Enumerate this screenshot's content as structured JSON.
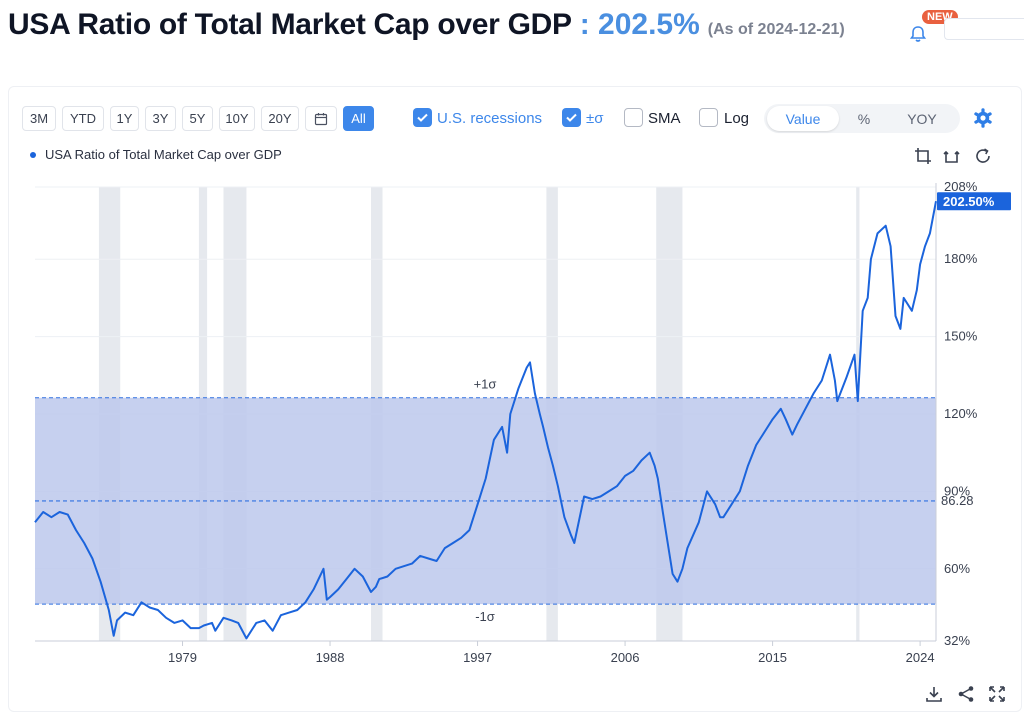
{
  "header": {
    "title": "USA Ratio of Total Market Cap over GDP",
    "value": ": 202.5%",
    "as_of": "(As of 2024-12-21)",
    "new_badge": "NEW"
  },
  "toolbar": {
    "ranges": [
      "3M",
      "YTD",
      "1Y",
      "3Y",
      "5Y",
      "10Y",
      "20Y",
      "All"
    ],
    "active_range": "All",
    "options": [
      {
        "label": "U.S. recessions",
        "checked": true
      },
      {
        "label": "±σ",
        "checked": true
      },
      {
        "label": "SMA",
        "checked": false
      },
      {
        "label": "Log",
        "checked": false
      }
    ],
    "modes": [
      "Value",
      "%",
      "YOY"
    ],
    "active_mode": "Value"
  },
  "icons": {
    "bell": "bell-icon",
    "calendar": "calendar-icon",
    "settings": "gear-icon",
    "crop_bottom": "crop-icon",
    "crop_top": "crop-alt-icon",
    "reset": "refresh-icon",
    "download": "download-icon",
    "share": "share-icon",
    "fullscreen": "fullscreen-icon"
  },
  "colors": {
    "accent": "#3d87ea",
    "series": "#1b64dc",
    "sigma_band": "#bcc8ec",
    "recession": "#e6e9ee",
    "badge": "#e9603f"
  },
  "chart_data": {
    "type": "line",
    "legend": "USA Ratio of Total Market Cap over GDP",
    "x_ticks": [
      1979,
      1988,
      1997,
      2006,
      2015,
      2024
    ],
    "x_range": [
      1970.0,
      2024.97
    ],
    "y_ticks": [
      {
        "value": 32,
        "label": "32%"
      },
      {
        "value": 60,
        "label": "60%"
      },
      {
        "value": 90,
        "label": "90%"
      },
      {
        "value": 120,
        "label": "120%"
      },
      {
        "value": 150,
        "label": "150%"
      },
      {
        "value": 180,
        "label": "180%"
      },
      {
        "value": 208,
        "label": "208%"
      }
    ],
    "y_range": [
      32,
      208
    ],
    "current_value": 202.5,
    "current_label": "202.50%",
    "sigma": {
      "mean": 86.28,
      "mean_label": "86.28",
      "upper": 126.3,
      "lower": 46.3,
      "upper_label": "+1σ",
      "lower_label": "-1σ"
    },
    "recessions": [
      [
        1973.9,
        1975.2
      ],
      [
        1980.0,
        1980.5
      ],
      [
        1981.5,
        1982.9
      ],
      [
        1990.5,
        1991.2
      ],
      [
        2001.2,
        2001.9
      ],
      [
        2007.9,
        2009.5
      ],
      [
        2020.1,
        2020.3
      ]
    ],
    "series": [
      {
        "name": "USA Ratio of Total Market Cap over GDP",
        "x": [
          1970.0,
          1970.5,
          1971.0,
          1971.5,
          1972.0,
          1972.5,
          1973.0,
          1973.5,
          1974.0,
          1974.5,
          1974.8,
          1975.0,
          1975.5,
          1976.0,
          1976.5,
          1977.0,
          1977.5,
          1978.0,
          1978.5,
          1979.0,
          1979.5,
          1980.0,
          1980.3,
          1980.8,
          1981.0,
          1981.5,
          1982.0,
          1982.4,
          1982.9,
          1983.5,
          1984.0,
          1984.5,
          1985.0,
          1985.5,
          1986.0,
          1986.5,
          1987.0,
          1987.6,
          1987.8,
          1988.0,
          1988.5,
          1989.0,
          1989.5,
          1990.0,
          1990.5,
          1990.8,
          1991.0,
          1991.5,
          1992.0,
          1992.5,
          1993.0,
          1993.5,
          1994.0,
          1994.5,
          1995.0,
          1995.5,
          1996.0,
          1996.5,
          1997.0,
          1997.5,
          1998.0,
          1998.5,
          1998.8,
          1999.0,
          1999.5,
          2000.0,
          2000.2,
          2000.5,
          2000.8,
          2001.0,
          2001.3,
          2001.6,
          2001.9,
          2002.3,
          2002.7,
          2002.9,
          2003.5,
          2004.0,
          2004.5,
          2005.0,
          2005.5,
          2006.0,
          2006.5,
          2007.0,
          2007.5,
          2007.8,
          2008.0,
          2008.3,
          2008.6,
          2008.9,
          2009.2,
          2009.5,
          2009.8,
          2010.5,
          2011.0,
          2011.5,
          2011.8,
          2012.0,
          2012.5,
          2013.0,
          2013.5,
          2014.0,
          2014.5,
          2015.0,
          2015.5,
          2015.8,
          2016.2,
          2016.5,
          2017.0,
          2017.5,
          2018.0,
          2018.5,
          2018.8,
          2018.95,
          2019.5,
          2020.0,
          2020.2,
          2020.5,
          2020.8,
          2021.0,
          2021.4,
          2021.9,
          2022.2,
          2022.5,
          2022.8,
          2023.0,
          2023.5,
          2023.8,
          2024.0,
          2024.3,
          2024.6,
          2024.97
        ],
        "values": [
          78,
          82,
          80,
          82,
          81,
          75,
          70,
          64,
          55,
          44,
          34,
          40,
          43,
          42,
          47,
          45,
          44,
          41,
          39,
          40,
          37,
          37,
          38,
          39,
          36,
          41,
          40,
          39,
          33,
          39,
          40,
          36,
          42,
          43,
          44,
          47,
          52,
          60,
          48,
          49,
          52,
          56,
          60,
          57,
          51,
          53,
          56,
          57,
          60,
          61,
          62,
          65,
          64,
          63,
          68,
          70,
          72,
          75,
          85,
          95,
          110,
          115,
          105,
          120,
          130,
          138,
          140,
          128,
          120,
          115,
          107,
          100,
          92,
          80,
          73,
          70,
          88,
          87,
          88,
          90,
          92,
          96,
          98,
          102,
          105,
          100,
          95,
          82,
          70,
          58,
          55,
          60,
          68,
          78,
          90,
          85,
          80,
          80,
          85,
          90,
          100,
          108,
          113,
          118,
          122,
          118,
          112,
          116,
          122,
          128,
          133,
          143,
          133,
          125,
          134,
          143,
          125,
          160,
          165,
          180,
          190,
          193,
          185,
          158,
          153,
          165,
          160,
          168,
          178,
          185,
          190,
          202.5
        ]
      }
    ]
  }
}
